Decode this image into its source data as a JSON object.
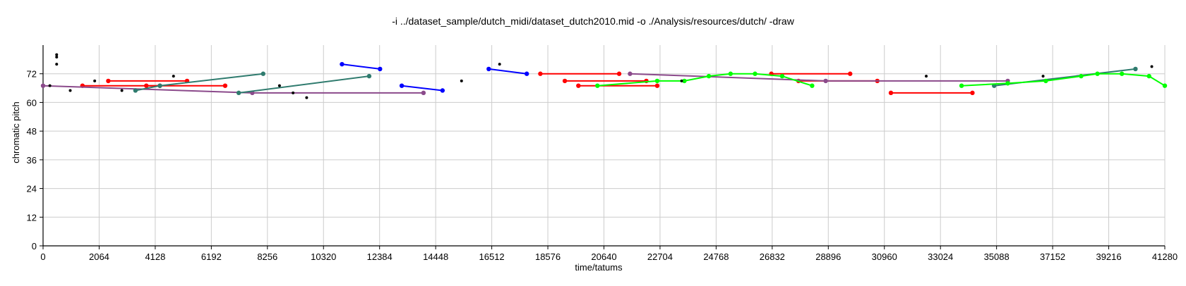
{
  "chart_data": {
    "type": "scatter",
    "title": "-i ../dataset_sample/dutch_midi/dataset_dutch2010.mid -o ./Analysis/resources/dutch/ -draw",
    "xlabel": "time/tatums",
    "ylabel": "chromatic pitch",
    "xlim": [
      0,
      41280
    ],
    "ylim": [
      0,
      84
    ],
    "xticks": [
      0,
      2064,
      4128,
      6192,
      8256,
      10320,
      12384,
      14448,
      16512,
      18576,
      20640,
      22704,
      24768,
      26832,
      28896,
      30960,
      33024,
      35088,
      37152,
      39216,
      41280
    ],
    "yticks": [
      0,
      12,
      24,
      36,
      48,
      60,
      72
    ],
    "grid": true,
    "colors": {
      "red": "#ff0000",
      "blue": "#0000ff",
      "green": "#00ff00",
      "purple": "#8b4a8b",
      "teal": "#2f7b6e",
      "black": "#000000",
      "grid": "#cccccc"
    },
    "series": [
      {
        "color": "#ff0000",
        "points": [
          [
            1450,
            67
          ],
          [
            6700,
            67
          ]
        ]
      },
      {
        "color": "#ff0000",
        "points": [
          [
            2400,
            69
          ],
          [
            5300,
            69
          ]
        ]
      },
      {
        "color": "#ff0000",
        "points": [
          [
            3800,
            67
          ],
          [
            4300,
            67
          ]
        ]
      },
      {
        "color": "#ff0000",
        "points": [
          [
            18300,
            72
          ],
          [
            21200,
            72
          ]
        ]
      },
      {
        "color": "#ff0000",
        "points": [
          [
            19200,
            69
          ],
          [
            22200,
            69
          ]
        ]
      },
      {
        "color": "#ff0000",
        "points": [
          [
            19700,
            67
          ],
          [
            22600,
            67
          ]
        ]
      },
      {
        "color": "#ff0000",
        "points": [
          [
            26800,
            72
          ],
          [
            29700,
            72
          ]
        ]
      },
      {
        "color": "#ff0000",
        "points": [
          [
            27800,
            69
          ],
          [
            30700,
            69
          ]
        ]
      },
      {
        "color": "#ff0000",
        "points": [
          [
            31200,
            64
          ],
          [
            34200,
            64
          ]
        ]
      },
      {
        "color": "#8b4a8b",
        "points": [
          [
            0,
            67
          ],
          [
            7700,
            64
          ],
          [
            14000,
            64
          ]
        ]
      },
      {
        "color": "#8b4a8b",
        "points": [
          [
            21600,
            72
          ],
          [
            28800,
            69
          ],
          [
            35500,
            69
          ]
        ]
      },
      {
        "color": "#2f7b6e",
        "points": [
          [
            3400,
            65
          ],
          [
            4300,
            67
          ],
          [
            8100,
            72
          ]
        ]
      },
      {
        "color": "#2f7b6e",
        "points": [
          [
            7200,
            64
          ],
          [
            12000,
            71
          ]
        ]
      },
      {
        "color": "#2f7b6e",
        "points": [
          [
            35000,
            67
          ],
          [
            40200,
            74
          ]
        ]
      },
      {
        "color": "#0000ff",
        "points": [
          [
            11000,
            76
          ],
          [
            12400,
            74
          ]
        ]
      },
      {
        "color": "#0000ff",
        "points": [
          [
            13200,
            67
          ],
          [
            14700,
            65
          ]
        ]
      },
      {
        "color": "#0000ff",
        "points": [
          [
            16400,
            74
          ],
          [
            17800,
            72
          ]
        ]
      },
      {
        "color": "#00ff00",
        "points": [
          [
            20400,
            67
          ],
          [
            22600,
            69
          ],
          [
            23600,
            69
          ],
          [
            24500,
            71
          ],
          [
            25300,
            72
          ],
          [
            26200,
            72
          ],
          [
            27200,
            71
          ],
          [
            28300,
            67
          ]
        ]
      },
      {
        "color": "#00ff00",
        "points": [
          [
            33800,
            67
          ],
          [
            35500,
            68
          ],
          [
            36900,
            69
          ],
          [
            38200,
            71
          ],
          [
            38800,
            72
          ],
          [
            39700,
            72
          ],
          [
            40700,
            71
          ],
          [
            41280,
            67
          ]
        ]
      }
    ],
    "scatter_points": [
      [
        250,
        67
      ],
      [
        500,
        80
      ],
      [
        500,
        79
      ],
      [
        500,
        76
      ],
      [
        1000,
        65
      ],
      [
        1900,
        69
      ],
      [
        2900,
        65
      ],
      [
        4800,
        71
      ],
      [
        8700,
        67
      ],
      [
        9200,
        64
      ],
      [
        9700,
        62
      ],
      [
        15400,
        69
      ],
      [
        16800,
        76
      ],
      [
        23500,
        69
      ],
      [
        32500,
        71
      ],
      [
        36800,
        71
      ],
      [
        40800,
        75
      ]
    ]
  }
}
